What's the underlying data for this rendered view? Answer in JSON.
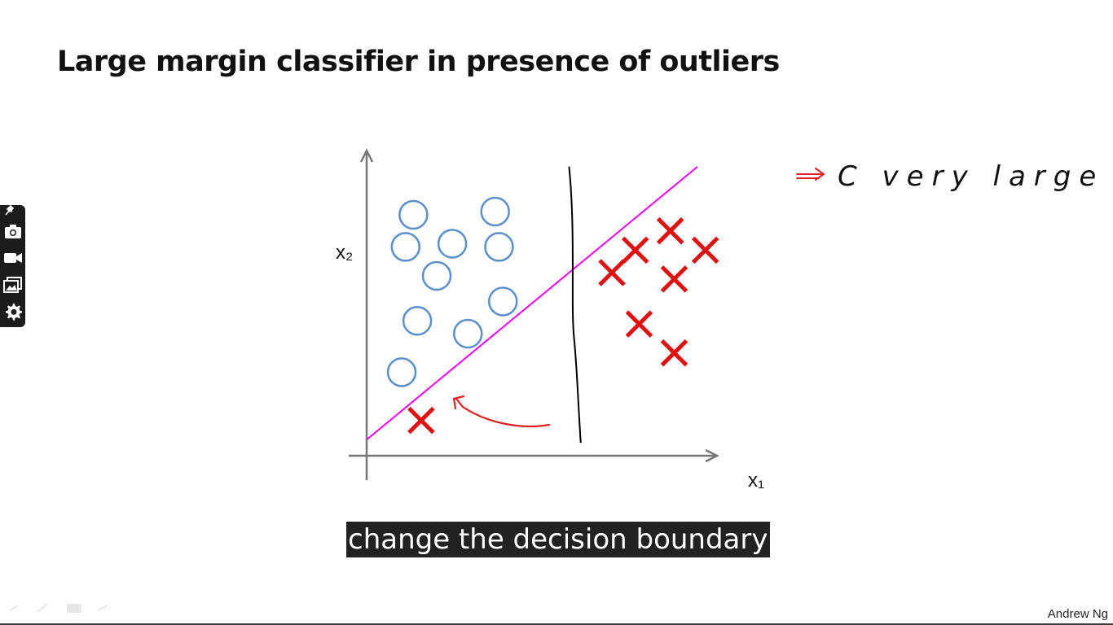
{
  "slide": {
    "title": "Large margin classifier in presence of outliers",
    "author": "Andrew Ng",
    "annotation": "C very large"
  },
  "caption": {
    "text": "change the decision boundary"
  },
  "toolbar": {
    "items": [
      {
        "name": "pin-icon"
      },
      {
        "name": "camera-icon"
      },
      {
        "name": "video-camera-icon"
      },
      {
        "name": "gallery-icon"
      },
      {
        "name": "gear-icon"
      }
    ]
  },
  "colors": {
    "circle": "#5b8fcb",
    "cross": "#e01010",
    "magenta_line": "#ee00ee",
    "black_line": "#000000",
    "annotation": "#e02020",
    "caption_bg": "#222222"
  },
  "chart_data": {
    "type": "scatter",
    "title": "",
    "xlabel": "x₁",
    "ylabel": "x₂",
    "series": [
      {
        "name": "",
        "marker": "circle",
        "points": [
          [
            1.2,
            7.5
          ],
          [
            3.3,
            7.6
          ],
          [
            2.2,
            6.6
          ],
          [
            3.4,
            6.5
          ],
          [
            1.0,
            6.5
          ],
          [
            1.8,
            5.6
          ],
          [
            3.5,
            4.8
          ],
          [
            1.3,
            4.2
          ],
          [
            2.6,
            3.8
          ],
          [
            0.9,
            2.6
          ]
        ]
      },
      {
        "name": "",
        "marker": "cross",
        "points": [
          [
            7.8,
            7.0
          ],
          [
            6.9,
            6.4
          ],
          [
            8.7,
            6.4
          ],
          [
            6.3,
            5.7
          ],
          [
            7.9,
            5.5
          ],
          [
            7.0,
            4.1
          ],
          [
            7.9,
            3.2
          ],
          [
            1.4,
            1.1
          ]
        ]
      }
    ],
    "lines": [
      {
        "name": "",
        "style": "magenta",
        "from": [
          0.0,
          0.5
        ],
        "to": [
          8.5,
          9.0
        ]
      },
      {
        "name": "",
        "style": "black",
        "from": [
          5.2,
          9.0
        ],
        "to": [
          5.5,
          0.4
        ]
      }
    ],
    "xlim": [
      0,
      9
    ],
    "ylim": [
      0,
      9.5
    ],
    "grid": false
  }
}
